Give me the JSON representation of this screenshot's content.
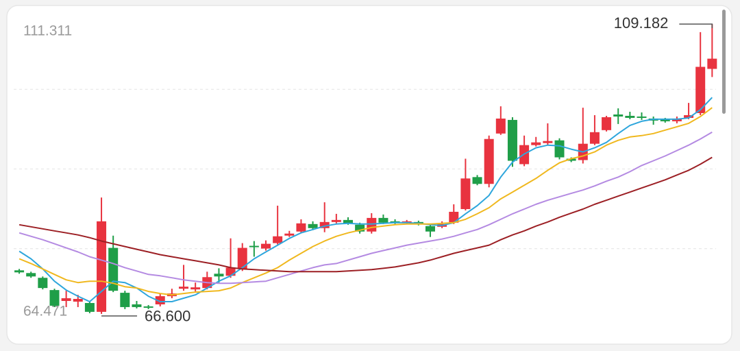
{
  "chart_data": {
    "type": "candlestick",
    "ylim": [
      64.471,
      111.311
    ],
    "yticks": [
      111.311,
      64.471
    ],
    "up_color": "#e8333f",
    "down_color": "#1f9e48",
    "open": [
      73.0,
      72.6,
      71.9,
      70.1,
      68.5,
      68.4,
      68.2,
      66.9,
      76.3,
      69.7,
      68.0,
      67.7,
      68.0,
      69.2,
      70.3,
      70.2,
      70.4,
      72.5,
      72.2,
      73.2,
      76.6,
      76.2,
      77.0,
      78.1,
      78.7,
      79.8,
      79.2,
      80.1,
      80.4,
      79.7,
      78.7,
      80.7,
      80.2,
      80.0,
      80.1,
      79.5,
      79.4,
      80.0,
      82.0,
      86.7,
      85.7,
      93.1,
      95.1,
      88.6,
      91.4,
      91.7,
      92.1,
      89.4,
      89.2,
      91.6,
      93.6,
      95.9,
      95.7,
      95.6,
      95.3,
      95.2,
      94.9,
      95.4,
      96.1,
      102.6
    ],
    "high": [
      73.2,
      72.8,
      72.1,
      70.3,
      70.0,
      69.4,
      68.4,
      83.7,
      78.1,
      70.0,
      68.5,
      67.9,
      69.6,
      70.3,
      73.8,
      71.2,
      72.8,
      73.3,
      77.7,
      77.0,
      77.3,
      77.4,
      82.5,
      78.8,
      80.5,
      80.2,
      83.0,
      81.3,
      80.8,
      80.0,
      81.4,
      81.2,
      80.5,
      80.4,
      80.3,
      79.7,
      80.2,
      82.7,
      89.4,
      87.0,
      92.8,
      97.1,
      95.5,
      92.8,
      92.6,
      94.6,
      92.4,
      89.6,
      96.9,
      95.8,
      95.7,
      96.8,
      96.3,
      96.2,
      95.6,
      95.4,
      95.6,
      97.6,
      108.0,
      109.182
    ],
    "low": [
      72.5,
      71.9,
      70.2,
      67.6,
      67.6,
      67.6,
      66.7,
      66.6,
      69.8,
      67.3,
      67.4,
      67.3,
      67.7,
      68.9,
      70.0,
      69.9,
      70.2,
      71.2,
      71.9,
      72.9,
      75.0,
      75.9,
      76.8,
      77.9,
      78.5,
      78.9,
      78.6,
      79.9,
      79.7,
      78.4,
      78.4,
      79.8,
      79.8,
      79.8,
      79.6,
      77.9,
      79.2,
      79.8,
      81.8,
      85.5,
      85.2,
      92.9,
      88.2,
      88.3,
      91.2,
      91.4,
      89.3,
      88.9,
      88.7,
      91.4,
      93.4,
      94.5,
      95.2,
      95.1,
      94.4,
      94.7,
      94.6,
      95.2,
      95.8,
      101.4
    ],
    "close": [
      72.7,
      72.1,
      70.4,
      67.8,
      68.9,
      68.8,
      66.9,
      80.2,
      70.0,
      67.6,
      67.6,
      67.5,
      69.2,
      69.6,
      70.6,
      70.5,
      72.0,
      72.1,
      73.4,
      76.3,
      76.4,
      76.9,
      78.0,
      78.4,
      79.9,
      79.2,
      80.1,
      80.4,
      79.9,
      78.7,
      80.7,
      80.0,
      80.0,
      80.2,
      79.8,
      78.7,
      79.8,
      81.6,
      86.5,
      85.7,
      92.3,
      95.3,
      89.1,
      91.4,
      91.8,
      92.0,
      89.6,
      89.1,
      91.6,
      93.3,
      95.5,
      95.6,
      95.4,
      95.4,
      95.0,
      94.9,
      95.3,
      95.8,
      102.9,
      104.1
    ],
    "series": [
      {
        "color": "#2ea6dc",
        "values": [
          75.8,
          74.7,
          73.2,
          71.4,
          70.1,
          69.2,
          68.4,
          69.9,
          71.4,
          71.2,
          70.4,
          69.2,
          68.4,
          68.4,
          68.9,
          69.4,
          70.4,
          71.4,
          72.2,
          73.4,
          74.7,
          75.7,
          76.7,
          77.7,
          78.5,
          79.0,
          79.5,
          79.8,
          79.9,
          79.8,
          79.8,
          79.9,
          80.0,
          80.0,
          79.9,
          79.7,
          79.6,
          80.0,
          81.3,
          82.5,
          84.0,
          86.7,
          88.9,
          90.1,
          91.0,
          91.4,
          91.3,
          90.8,
          90.4,
          91.0,
          91.8,
          93.1,
          94.3,
          94.9,
          95.2,
          95.2,
          95.2,
          95.4,
          96.6,
          98.4
        ]
      },
      {
        "color": "#f0b81e",
        "values": [
          74.7,
          74.0,
          73.2,
          72.4,
          71.6,
          71.2,
          71.4,
          71.4,
          71.1,
          70.6,
          70.4,
          69.9,
          69.6,
          69.4,
          69.6,
          69.8,
          69.9,
          70.0,
          70.4,
          71.2,
          71.9,
          72.6,
          73.4,
          74.5,
          75.5,
          76.5,
          77.3,
          78.0,
          78.5,
          78.9,
          79.3,
          79.5,
          79.7,
          79.8,
          79.8,
          79.8,
          79.9,
          80.0,
          80.5,
          81.3,
          82.2,
          83.5,
          84.5,
          85.5,
          86.5,
          87.7,
          88.8,
          89.4,
          89.8,
          90.4,
          91.4,
          92.1,
          92.6,
          92.8,
          93.1,
          93.6,
          94.1,
          94.6,
          95.6,
          96.9
        ]
      },
      {
        "color": "#b48ae2",
        "values": [
          78.5,
          78.0,
          77.5,
          76.9,
          76.3,
          75.7,
          75.0,
          74.5,
          74.0,
          73.4,
          72.9,
          72.4,
          72.2,
          71.9,
          71.6,
          71.4,
          71.2,
          71.1,
          71.1,
          71.2,
          71.3,
          71.4,
          71.9,
          72.4,
          72.9,
          73.4,
          73.8,
          74.0,
          74.5,
          75.0,
          75.5,
          75.9,
          76.3,
          76.7,
          77.0,
          77.3,
          77.6,
          78.0,
          78.5,
          79.0,
          79.7,
          80.5,
          81.3,
          82.0,
          82.7,
          83.3,
          83.8,
          84.3,
          84.8,
          85.4,
          86.1,
          86.7,
          87.5,
          88.4,
          89.1,
          89.8,
          90.6,
          91.4,
          92.3,
          93.3
        ]
      },
      {
        "color": "#9c1f24",
        "values": [
          79.7,
          79.4,
          79.1,
          78.8,
          78.5,
          78.2,
          77.8,
          77.3,
          76.9,
          76.5,
          76.1,
          75.7,
          75.3,
          75.0,
          74.7,
          74.4,
          74.1,
          73.8,
          73.4,
          73.2,
          73.1,
          73.0,
          72.9,
          72.8,
          72.8,
          72.8,
          72.8,
          72.8,
          72.9,
          73.0,
          73.1,
          73.3,
          73.5,
          73.8,
          74.1,
          74.5,
          75.0,
          75.5,
          75.9,
          76.3,
          76.7,
          77.5,
          78.2,
          78.8,
          79.5,
          80.1,
          80.8,
          81.4,
          82.0,
          82.7,
          83.3,
          83.9,
          84.5,
          85.1,
          85.7,
          86.3,
          87.0,
          87.7,
          88.6,
          89.6
        ]
      }
    ],
    "annotations": [
      {
        "label": "109.182",
        "value": 109.182
      },
      {
        "label": "66.600",
        "value": 66.6
      }
    ]
  }
}
